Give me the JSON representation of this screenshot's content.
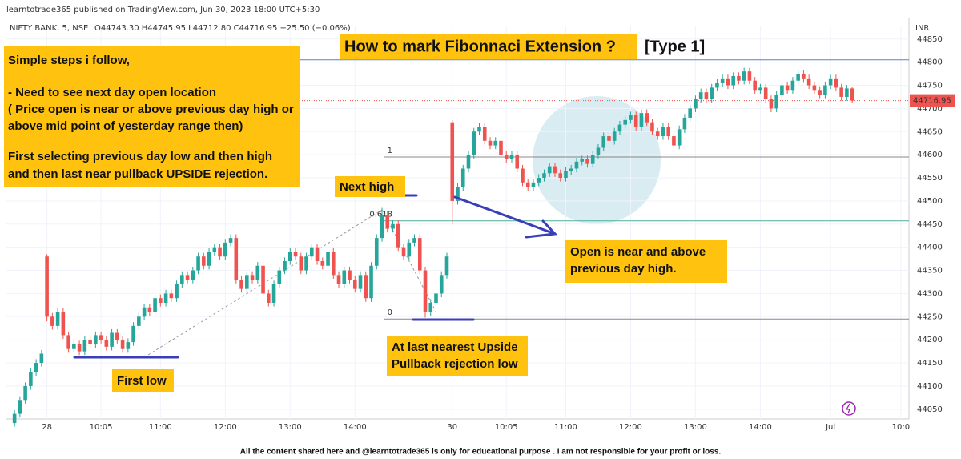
{
  "header": {
    "publisher": "learntotrade365 published on TradingView.com, Jun 30, 2023 18:00 UTC+5:30",
    "symbol": "NIFTY BANK, 5, NSE",
    "ohlc": "O44743.30 H44745.95 L44712.80 C44716.95 −25.50 (−0.06%)",
    "currency": "INR"
  },
  "notes": [
    "Simple steps i follow,",
    "- Need to see next day open location",
    "( Price open is near or above previous day high or",
    "above mid point of yesterday range then)",
    "First selecting previous day low and then high",
    "and then last near pullback UPSIDE rejection."
  ],
  "footer": "All the content shared here and @learntotrade365 is only for educational purpose . I am not responsible for your profit or loss.",
  "chart_data": {
    "type": "candlestick",
    "title": "How to mark Fibonnaci Extension ?",
    "subtitle": "[Type  1]",
    "up_color": "#26a69a",
    "down_color": "#ef5350",
    "open": [
      44020,
      44040,
      44070,
      44100,
      44130,
      44150,
      44380,
      44250,
      44230,
      44260,
      44210,
      44180,
      44190,
      44175,
      44200,
      44190,
      44210,
      44200,
      44185,
      44215,
      44200,
      44180,
      44195,
      44230,
      44250,
      44270,
      44260,
      44290,
      44280,
      44300,
      44290,
      44320,
      44340,
      44330,
      44350,
      44380,
      44360,
      44390,
      44400,
      44380,
      44410,
      44420,
      44330,
      44310,
      44340,
      44330,
      44360,
      44300,
      44280,
      44320,
      44350,
      44370,
      44390,
      44380,
      44350,
      44380,
      44400,
      44370,
      44360,
      44390,
      44340,
      44320,
      44350,
      44330,
      44310,
      44340,
      44290,
      44360,
      44420,
      44470,
      44440,
      44450,
      44400,
      44380,
      44410,
      44420,
      44350,
      44260,
      44280,
      44300,
      44340,
      44670,
      44500,
      44530,
      44570,
      44600,
      44650,
      44660,
      44630,
      44620,
      44630,
      44600,
      44590,
      44600,
      44570,
      44540,
      44530,
      44540,
      44550,
      44560,
      44575,
      44560,
      44550,
      44565,
      44570,
      44585,
      44590,
      44580,
      44600,
      44615,
      44640,
      44630,
      44650,
      44665,
      44675,
      44685,
      44660,
      44690,
      44670,
      44650,
      44640,
      44660,
      44640,
      44620,
      44655,
      44680,
      44700,
      44720,
      44735,
      44720,
      44745,
      44755,
      44765,
      44750,
      44770,
      44760,
      44780,
      44760,
      44740,
      44745,
      44720,
      44700,
      44730,
      44750,
      44740,
      44760,
      44775,
      44765,
      44750,
      44740,
      44730,
      44750,
      44765,
      44745,
      44725,
      44743.3
    ],
    "high": [
      44048,
      44078,
      44108,
      44138,
      44158,
      44178,
      44385,
      44258,
      44268,
      44268,
      44218,
      44198,
      44198,
      44208,
      44208,
      44218,
      44218,
      44208,
      44223,
      44223,
      44208,
      44203,
      44238,
      44258,
      44278,
      44278,
      44298,
      44298,
      44308,
      44308,
      44328,
      44348,
      44348,
      44358,
      44388,
      44388,
      44398,
      44408,
      44408,
      44418,
      44428,
      44428,
      44338,
      44348,
      44348,
      44368,
      44368,
      44308,
      44328,
      44358,
      44378,
      44398,
      44398,
      44388,
      44388,
      44408,
      44408,
      44378,
      44398,
      44398,
      44348,
      44358,
      44358,
      44338,
      44348,
      44348,
      44368,
      44428,
      44485,
      44478,
      44458,
      44458,
      44408,
      44418,
      44428,
      44428,
      44358,
      44288,
      44308,
      44348,
      44388,
      44675,
      44538,
      44578,
      44608,
      44658,
      44668,
      44668,
      44638,
      44638,
      44638,
      44608,
      44608,
      44608,
      44578,
      44548,
      44548,
      44558,
      44568,
      44583,
      44583,
      44568,
      44573,
      44578,
      44593,
      44598,
      44598,
      44608,
      44623,
      44648,
      44648,
      44658,
      44673,
      44683,
      44693,
      44693,
      44698,
      44698,
      44678,
      44658,
      44668,
      44668,
      44648,
      44663,
      44688,
      44708,
      44728,
      44743,
      44743,
      44753,
      44763,
      44773,
      44773,
      44778,
      44778,
      44788,
      44788,
      44768,
      44753,
      44753,
      44728,
      44738,
      44758,
      44758,
      44768,
      44783,
      44783,
      44773,
      44758,
      44748,
      44758,
      44773,
      44773,
      44753,
      44751,
      44745.95
    ],
    "low": [
      44012,
      44032,
      44062,
      44092,
      44122,
      44142,
      44240,
      44222,
      44222,
      44202,
      44172,
      44172,
      44167,
      44167,
      44182,
      44182,
      44192,
      44177,
      44177,
      44192,
      44172,
      44172,
      44187,
      44222,
      44242,
      44252,
      44252,
      44272,
      44272,
      44282,
      44282,
      44312,
      44322,
      44322,
      44342,
      44352,
      44352,
      44382,
      44372,
      44372,
      44402,
      44322,
      44302,
      44302,
      44322,
      44322,
      44292,
      44272,
      44272,
      44312,
      44342,
      44362,
      44372,
      44342,
      44342,
      44372,
      44362,
      44352,
      44352,
      44332,
      44312,
      44312,
      44322,
      44302,
      44302,
      44282,
      44282,
      44352,
      44412,
      44432,
      44432,
      44392,
      44372,
      44372,
      44402,
      44342,
      44248,
      44252,
      44272,
      44292,
      44332,
      44450,
      44492,
      44522,
      44562,
      44592,
      44642,
      44622,
      44612,
      44612,
      44592,
      44582,
      44582,
      44562,
      44532,
      44522,
      44522,
      44532,
      44542,
      44552,
      44552,
      44542,
      44542,
      44557,
      44562,
      44577,
      44572,
      44572,
      44592,
      44607,
      44622,
      44622,
      44642,
      44657,
      44667,
      44652,
      44652,
      44662,
      44642,
      44632,
      44632,
      44632,
      44612,
      44612,
      44647,
      44672,
      44692,
      44712,
      44712,
      44712,
      44737,
      44747,
      44742,
      44742,
      44752,
      44752,
      44752,
      44732,
      44732,
      44712,
      44692,
      44692,
      44722,
      44732,
      44732,
      44752,
      44757,
      44742,
      44732,
      44722,
      44722,
      44742,
      44737,
      44717,
      44717,
      44712.8
    ],
    "close": [
      44040,
      44070,
      44100,
      44130,
      44150,
      44170,
      44250,
      44230,
      44260,
      44210,
      44180,
      44190,
      44175,
      44200,
      44190,
      44210,
      44200,
      44185,
      44215,
      44200,
      44180,
      44195,
      44230,
      44250,
      44270,
      44260,
      44290,
      44280,
      44300,
      44290,
      44320,
      44340,
      44330,
      44350,
      44380,
      44360,
      44390,
      44400,
      44380,
      44410,
      44420,
      44330,
      44310,
      44340,
      44330,
      44360,
      44300,
      44280,
      44320,
      44350,
      44370,
      44390,
      44380,
      44350,
      44380,
      44400,
      44370,
      44360,
      44390,
      44340,
      44320,
      44350,
      44330,
      44310,
      44340,
      44290,
      44360,
      44420,
      44470,
      44440,
      44450,
      44400,
      44380,
      44410,
      44420,
      44350,
      44260,
      44280,
      44300,
      44340,
      44380,
      44500,
      44530,
      44570,
      44600,
      44650,
      44660,
      44630,
      44620,
      44630,
      44600,
      44590,
      44600,
      44570,
      44540,
      44530,
      44540,
      44550,
      44560,
      44575,
      44560,
      44550,
      44565,
      44570,
      44585,
      44590,
      44580,
      44600,
      44615,
      44640,
      44630,
      44650,
      44665,
      44675,
      44685,
      44660,
      44690,
      44670,
      44650,
      44640,
      44660,
      44640,
      44620,
      44655,
      44680,
      44700,
      44720,
      44735,
      44720,
      44745,
      44755,
      44765,
      44750,
      44770,
      44760,
      44780,
      44760,
      44740,
      44745,
      44720,
      44700,
      44730,
      44750,
      44740,
      44760,
      44775,
      44765,
      44750,
      44740,
      44730,
      44750,
      44765,
      44745,
      44725,
      44743.3,
      44716.95
    ],
    "xlim": [
      -1.5,
      165.5
    ],
    "xticks": [
      {
        "value": 6,
        "label": "28"
      },
      {
        "value": 16,
        "label": "10:05"
      },
      {
        "value": 27,
        "label": "11:00"
      },
      {
        "value": 39,
        "label": "12:00"
      },
      {
        "value": 51,
        "label": "13:00"
      },
      {
        "value": 63,
        "label": "14:00"
      },
      {
        "value": 81,
        "label": "30"
      },
      {
        "value": 91,
        "label": "10:05"
      },
      {
        "value": 102,
        "label": "11:00"
      },
      {
        "value": 114,
        "label": "12:00"
      },
      {
        "value": 126,
        "label": "13:00"
      },
      {
        "value": 138,
        "label": "14:00"
      },
      {
        "value": 151,
        "label": "Jul"
      },
      {
        "value": 164,
        "label": "10:0"
      }
    ],
    "ylim": [
      44022,
      44879
    ],
    "yticks": [
      44050,
      44100,
      44150,
      44200,
      44250,
      44300,
      44350,
      44400,
      44450,
      44500,
      44550,
      44600,
      44650,
      44700,
      44750,
      44800,
      44850
    ],
    "last_price": 44716.95,
    "hlines": [
      {
        "value": 44805,
        "color": "#5b7fd6"
      }
    ],
    "fib_levels": [
      {
        "level": 1,
        "value": 44595,
        "color": "#888"
      },
      {
        "level": 0.618,
        "value": 44457,
        "color": "#4caf9a"
      },
      {
        "level": 0,
        "value": 44245,
        "color": "#888"
      }
    ],
    "annotations": {
      "next_high": "Next high",
      "open_note": [
        "Open is near and above",
        "previous day high."
      ],
      "first_low": "First low",
      "pullback_low": [
        "At last nearest Upside",
        "Pullback rejection low"
      ]
    }
  }
}
